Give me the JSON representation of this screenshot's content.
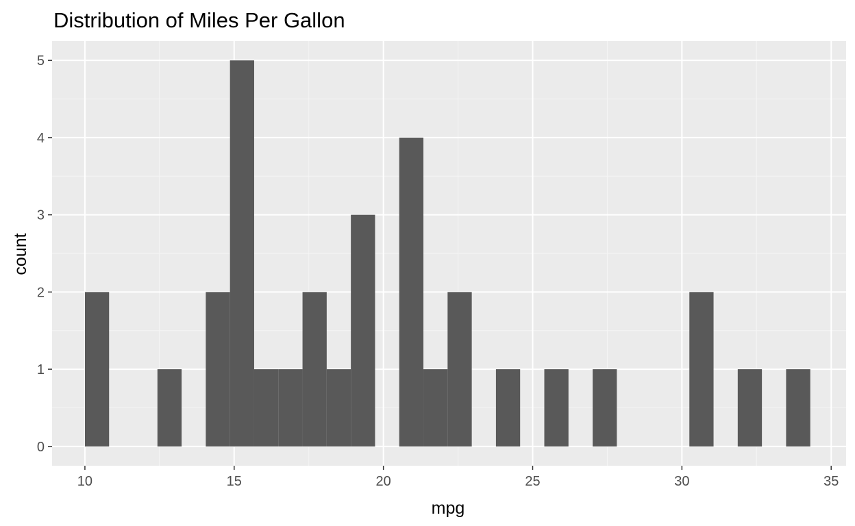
{
  "chart_data": {
    "type": "bar",
    "title": "Distribution of Miles Per Gallon",
    "xlabel": "mpg",
    "ylabel": "count",
    "xlim": [
      8.9,
      35.5
    ],
    "ylim": [
      -0.25,
      5.25
    ],
    "x_ticks": [
      10,
      15,
      20,
      25,
      30,
      35
    ],
    "y_ticks": [
      0,
      1,
      2,
      3,
      4,
      5
    ],
    "grid": true,
    "bin_width": 0.81,
    "bins": [
      {
        "start": 10.0,
        "count": 2
      },
      {
        "start": 10.81,
        "count": 0
      },
      {
        "start": 11.62,
        "count": 0
      },
      {
        "start": 12.43,
        "count": 1
      },
      {
        "start": 13.24,
        "count": 0
      },
      {
        "start": 14.05,
        "count": 2
      },
      {
        "start": 14.86,
        "count": 5
      },
      {
        "start": 15.67,
        "count": 1
      },
      {
        "start": 16.48,
        "count": 1
      },
      {
        "start": 17.29,
        "count": 2
      },
      {
        "start": 18.1,
        "count": 1
      },
      {
        "start": 18.91,
        "count": 3
      },
      {
        "start": 19.72,
        "count": 0
      },
      {
        "start": 20.53,
        "count": 4
      },
      {
        "start": 21.34,
        "count": 1
      },
      {
        "start": 22.15,
        "count": 2
      },
      {
        "start": 22.96,
        "count": 0
      },
      {
        "start": 23.77,
        "count": 1
      },
      {
        "start": 24.58,
        "count": 0
      },
      {
        "start": 25.39,
        "count": 1
      },
      {
        "start": 26.2,
        "count": 0
      },
      {
        "start": 27.01,
        "count": 1
      },
      {
        "start": 27.82,
        "count": 0
      },
      {
        "start": 28.63,
        "count": 0
      },
      {
        "start": 29.44,
        "count": 0
      },
      {
        "start": 30.25,
        "count": 2
      },
      {
        "start": 31.06,
        "count": 0
      },
      {
        "start": 31.87,
        "count": 1
      },
      {
        "start": 32.68,
        "count": 0
      },
      {
        "start": 33.49,
        "count": 1
      }
    ],
    "colors": {
      "bar_fill": "#595959",
      "panel_background": "#ebebeb",
      "grid_major": "#ffffff",
      "grid_minor": "#f5f5f5",
      "tick_label": "#4d4d4d",
      "tick_mark": "#333333",
      "text": "#000000"
    }
  }
}
